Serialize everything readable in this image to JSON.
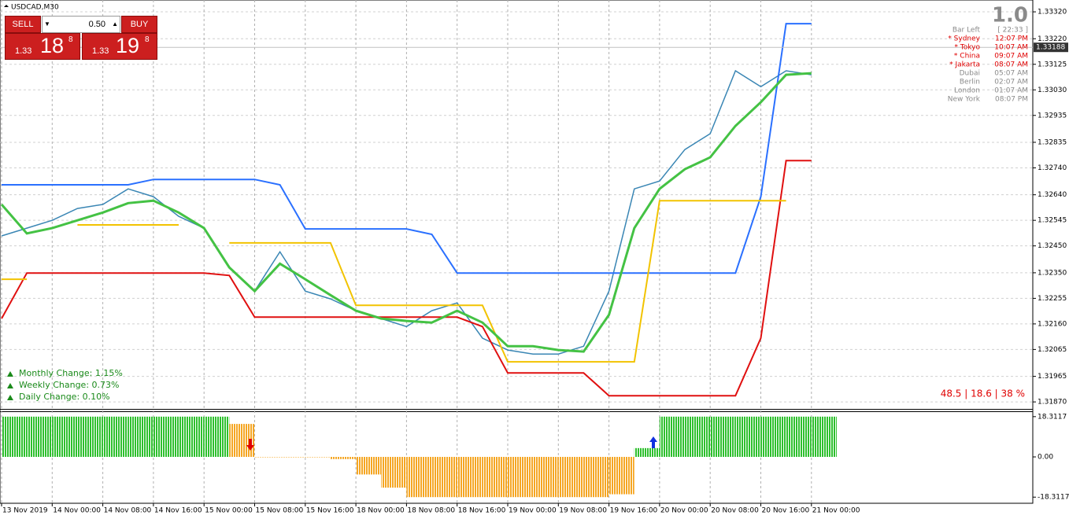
{
  "chart_data": [
    {
      "type": "line",
      "title": "USDCAD,M30",
      "categories": [
        "13 Nov 2019",
        null,
        "14 Nov 00:00",
        null,
        "14 Nov 08:00",
        null,
        "14 Nov 16:00",
        null,
        "15 Nov 00:00",
        null,
        "15 Nov 08:00",
        null,
        "15 Nov 16:00",
        null,
        "18 Nov 00:00",
        null,
        "18 Nov 08:00",
        null,
        "18 Nov 16:00",
        null,
        "19 Nov 00:00",
        null,
        "19 Nov 08:00",
        null,
        "19 Nov 16:00",
        null,
        "20 Nov 00:00",
        null,
        "20 Nov 08:00",
        null,
        "20 Nov 16:00",
        null,
        "21 Nov 00:00"
      ],
      "series": [
        {
          "color": "#3a86b4",
          "values": [
            1.32487,
            1.32516,
            1.32545,
            1.32589,
            1.32604,
            1.32662,
            1.32633,
            1.3256,
            1.32516,
            1.3237,
            1.32282,
            1.32428,
            1.32282,
            1.32253,
            1.32209,
            1.3218,
            1.3215,
            1.32209,
            1.32238,
            1.32107,
            1.32063,
            1.32048,
            1.32048,
            1.32077,
            1.32282,
            1.32662,
            1.32691,
            1.32808,
            1.32867,
            1.33101,
            1.33042,
            1.33101,
            1.33086
          ]
        },
        {
          "color": "#2a70ff",
          "values": [
            1.32677,
            1.32677,
            1.32677,
            1.32677,
            1.32677,
            1.32677,
            1.32697,
            1.32697,
            1.32697,
            1.32697,
            1.32697,
            1.32677,
            1.32513,
            1.32513,
            1.32513,
            1.32513,
            1.32513,
            1.32493,
            1.32349,
            1.32349,
            1.32349,
            1.32349,
            1.32349,
            1.32349,
            1.32349,
            1.32349,
            1.32349,
            1.32349,
            1.32349,
            1.32349,
            1.32633,
            1.33276,
            1.33276
          ]
        },
        {
          "color": "#e01010",
          "values": [
            1.3218,
            1.32349,
            1.32349,
            1.32349,
            1.32349,
            1.32349,
            1.32349,
            1.32349,
            1.32349,
            1.3234,
            1.32185,
            1.32185,
            1.32185,
            1.32185,
            1.32185,
            1.32185,
            1.32185,
            1.32185,
            1.32185,
            1.3215,
            1.31978,
            1.31978,
            1.31978,
            1.31978,
            1.31893,
            1.31893,
            1.31893,
            1.31893,
            1.31893,
            1.31893,
            1.32107,
            1.32767,
            1.32767
          ]
        },
        {
          "color": "#f2c300",
          "values": [
            1.32326,
            1.32326,
            null,
            1.32528,
            1.32528,
            1.32528,
            1.32528,
            1.32528,
            null,
            1.32461,
            1.32461,
            1.32461,
            1.32461,
            1.32461,
            1.32229,
            1.32229,
            1.32229,
            1.32229,
            1.32229,
            1.32229,
            1.32019,
            1.32019,
            1.32019,
            1.32019,
            1.32019,
            1.32019,
            1.32618,
            1.32618,
            1.32618,
            1.32618,
            1.32618,
            1.32618,
            null
          ]
        },
        {
          "color": "#44c244",
          "values": [
            1.32604,
            1.32496,
            1.32516,
            1.32545,
            1.32574,
            1.32609,
            1.32618,
            1.32574,
            1.32516,
            1.3237,
            1.32282,
            1.32384,
            1.32326,
            1.32267,
            1.32209,
            1.3218,
            1.32171,
            1.32165,
            1.32209,
            1.32165,
            1.32077,
            1.32077,
            1.32063,
            1.32057,
            1.32194,
            1.32516,
            1.32662,
            1.32735,
            1.32779,
            1.32896,
            1.32984,
            1.33086,
            1.33092
          ]
        }
      ],
      "ylim": [
        1.31844,
        1.33364
      ],
      "yticks": [
        {
          "value": 1.3332,
          "label": "1.33320"
        },
        {
          "value": 1.3322,
          "label": "1.33220"
        },
        {
          "value": 1.33125,
          "label": "1.33125"
        },
        {
          "value": 1.3303,
          "label": "1.33030"
        },
        {
          "value": 1.32935,
          "label": "1.32935"
        },
        {
          "value": 1.32835,
          "label": "1.32835"
        },
        {
          "value": 1.3274,
          "label": "1.32740"
        },
        {
          "value": 1.3264,
          "label": "1.32640"
        },
        {
          "value": 1.32545,
          "label": "1.32545"
        },
        {
          "value": 1.3245,
          "label": "1.32450"
        },
        {
          "value": 1.3235,
          "label": "1.32350"
        },
        {
          "value": 1.32255,
          "label": "1.32255"
        },
        {
          "value": 1.3216,
          "label": "1.32160"
        },
        {
          "value": 1.32065,
          "label": "1.32065"
        },
        {
          "value": 1.31965,
          "label": "1.31965"
        },
        {
          "value": 1.3187,
          "label": "1.31870"
        }
      ],
      "grid": true,
      "last_price": 1.33188
    },
    {
      "type": "bar",
      "values": [
        18.3117,
        18.3117,
        18.3117,
        18.3117,
        18.3117,
        18.3117,
        18.3117,
        18.3117,
        18.3117,
        15,
        0,
        0,
        0,
        -1,
        -8,
        -14,
        -18.3117,
        -18.3117,
        -18.3117,
        -18.3117,
        -18.3117,
        -18.3117,
        -18.3117,
        -18.3117,
        -17,
        4,
        18.3117,
        18.3117,
        18.3117,
        18.3117,
        18.3117,
        18.3117,
        18.3117
      ],
      "colors": [
        "#2ec02e",
        "#2ec02e",
        "#2ec02e",
        "#2ec02e",
        "#2ec02e",
        "#2ec02e",
        "#2ec02e",
        "#2ec02e",
        "#2ec02e",
        "#f5a623",
        "#f5a623",
        "#f5a623",
        "#f5a623",
        "#f5a623",
        "#f5a623",
        "#f5a623",
        "#f5a623",
        "#f5a623",
        "#f5a623",
        "#f5a623",
        "#f5a623",
        "#f5a623",
        "#f5a623",
        "#f5a623",
        "#f5a623",
        "#2ec02e",
        "#2ec02e",
        "#2ec02e",
        "#2ec02e",
        "#2ec02e",
        "#2ec02e",
        "#2ec02e",
        "#2ec02e"
      ],
      "ylim": [
        -21.1,
        20.4
      ],
      "yticks": [
        18.3117,
        {
          "value": 0,
          "label": "0.00"
        },
        -18.3117
      ]
    }
  ],
  "trade_panel": {
    "sell": "SELL",
    "lot": "0.50",
    "buy": "BUY",
    "bid_big": "1.33",
    "bid_pips": "18",
    "bid_frac": "8",
    "ask_big": "1.33",
    "ask_pips": "19",
    "ask_frac": "8"
  },
  "clock_panel": {
    "spread": "1.0",
    "bar_left": "Bar Left",
    "bar_left_time": "[ 22:33 ]",
    "cities": [
      {
        "name": "* Sydney",
        "time": "12:07 PM",
        "color": "#e00000"
      },
      {
        "name": "* Tokyo",
        "time": "10:07 AM",
        "color": "#e00000"
      },
      {
        "name": "* China",
        "time": "09:07 AM",
        "color": "#e00000"
      },
      {
        "name": "* Jakarta",
        "time": "08:07 AM",
        "color": "#e00000"
      },
      {
        "name": "Dubai",
        "time": "05:07 AM",
        "color": "#8a8a8a"
      },
      {
        "name": "Berlin",
        "time": "02:07 AM",
        "color": "#8a8a8a"
      },
      {
        "name": "London",
        "time": "01:07 AM",
        "color": "#8a8a8a"
      },
      {
        "name": "New York",
        "time": "08:07 PM",
        "color": "#8a8a8a"
      }
    ]
  },
  "changes": [
    "Monthly Change: 1.15%",
    "Weekly Change: 0.73%",
    "Daily Change: 0.10%"
  ],
  "stats": "48.5 | 18.6 | 38 %"
}
